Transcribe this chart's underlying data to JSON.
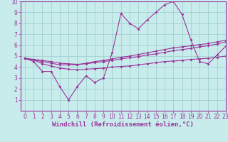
{
  "xlabel": "Windchill (Refroidissement éolien,°C)",
  "xlim": [
    -0.5,
    23
  ],
  "ylim": [
    0,
    10
  ],
  "xticks": [
    0,
    1,
    2,
    3,
    4,
    5,
    6,
    7,
    8,
    9,
    10,
    11,
    12,
    13,
    14,
    15,
    16,
    17,
    18,
    19,
    20,
    21,
    22,
    23
  ],
  "yticks": [
    1,
    2,
    3,
    4,
    5,
    6,
    7,
    8,
    9,
    10
  ],
  "bg_color": "#c8ecec",
  "grid_color": "#99cccc",
  "line_color": "#993399",
  "line1_y": [
    4.8,
    4.5,
    3.6,
    3.6,
    2.2,
    1.0,
    2.2,
    3.2,
    2.6,
    3.0,
    5.3,
    8.9,
    8.0,
    7.5,
    8.3,
    9.0,
    9.7,
    10.0,
    8.8,
    6.5,
    4.5,
    4.3,
    5.1,
    5.9
  ],
  "line2_y": [
    4.8,
    4.65,
    4.5,
    4.35,
    4.2,
    4.2,
    4.2,
    4.35,
    4.5,
    4.6,
    4.75,
    4.9,
    5.0,
    5.15,
    5.3,
    5.45,
    5.6,
    5.75,
    5.85,
    5.95,
    6.05,
    6.15,
    6.3,
    6.45
  ],
  "line3_y": [
    4.8,
    4.65,
    4.3,
    4.1,
    3.9,
    3.8,
    3.75,
    3.8,
    3.85,
    3.9,
    4.0,
    4.05,
    4.1,
    4.2,
    4.3,
    4.4,
    4.5,
    4.55,
    4.6,
    4.7,
    4.75,
    4.8,
    4.9,
    5.0
  ],
  "line4_y": [
    4.8,
    4.7,
    4.6,
    4.5,
    4.35,
    4.3,
    4.25,
    4.3,
    4.4,
    4.5,
    4.6,
    4.75,
    4.85,
    4.95,
    5.1,
    5.2,
    5.35,
    5.5,
    5.6,
    5.7,
    5.85,
    5.95,
    6.1,
    6.3
  ],
  "markersize": 2.0,
  "linewidth": 0.8,
  "xlabel_fontsize": 6.5,
  "tick_fontsize": 5.5
}
